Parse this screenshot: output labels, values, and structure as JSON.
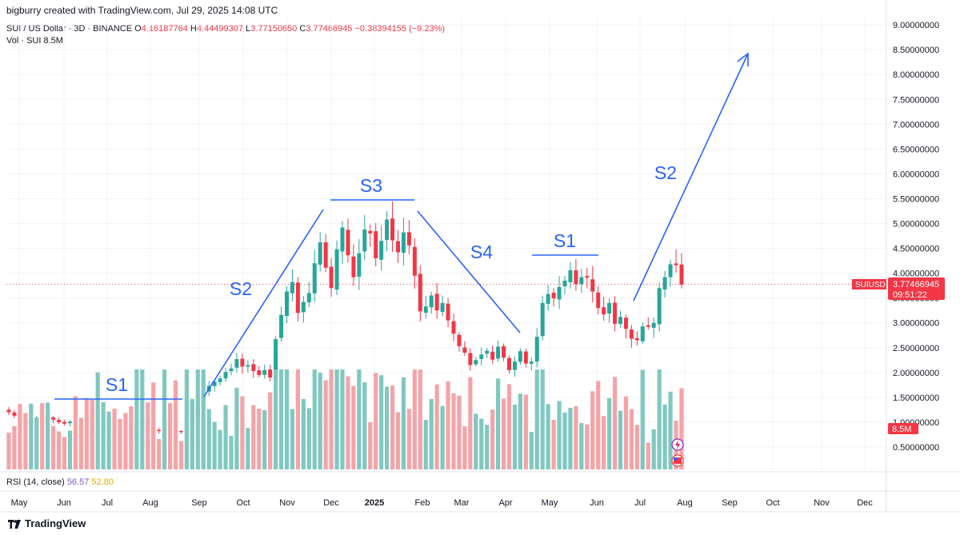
{
  "header": {
    "credit": "bigburry created with TradingView.com, Jul 29, 2025 14:08 UTC",
    "symbol_line": "SUI / US Dollar · 3D · BINANCE",
    "o_label": "O",
    "o_value": "4.16187764",
    "h_label": "H",
    "h_value": "4.44499307",
    "l_label": "L",
    "l_value": "3.77150650",
    "c_label": "C",
    "c_value": "3.77466945",
    "change": "−0.38394155 (−9.23%)",
    "vol_label": "Vol · SUI",
    "vol_value": "8.5M"
  },
  "rsi": {
    "label": "RSI (14, close)",
    "value1": "56.57",
    "value2": "52.80"
  },
  "footer": {
    "brand": "TradingView"
  },
  "colors": {
    "up": "#26a69a",
    "down": "#f23645",
    "drawing": "#2962ff",
    "vol_up": "#7fc8c0",
    "vol_down": "#f5a3a7"
  },
  "icons": [
    "tv-logo-icon",
    "lightning-icon",
    "us-flag-icon"
  ],
  "chart_data": {
    "type": "candlestick",
    "symbol": "SUIUSD",
    "interval": "3D",
    "y_ticks": [
      "9.00000000",
      "8.50000000",
      "8.00000000",
      "7.50000000",
      "7.00000000",
      "6.50000000",
      "6.00000000",
      "5.50000000",
      "5.00000000",
      "4.50000000",
      "4.00000000",
      "3.50000000",
      "3.00000000",
      "2.50000000",
      "2.00000000",
      "1.50000000",
      "1.00000000",
      "0.50000000"
    ],
    "x_ticks": [
      "May",
      "Jun",
      "Jul",
      "Aug",
      "Sep",
      "Oct",
      "Nov",
      "Dec",
      "2025",
      "Feb",
      "Mar",
      "Apr",
      "May",
      "Jun",
      "Jul",
      "Aug",
      "Sep",
      "Oct",
      "Nov",
      "Dec"
    ],
    "last_price": {
      "symbol": "SUIUSD",
      "price": "3.77466945",
      "countdown": "09:51:22",
      "volume": "8.5M"
    },
    "ylim": [
      0,
      9.2
    ],
    "annotations": [
      {
        "label": "S1",
        "from_date": "2024-06",
        "to_date": "2024-08",
        "price": 1.45
      },
      {
        "label": "S2",
        "from_date": "2024-09",
        "to_date": "2024-11",
        "price_range": [
          1.45,
          5.3
        ]
      },
      {
        "label": "S3",
        "from_date": "2024-12",
        "to_date": "2025-01",
        "price": 5.45
      },
      {
        "label": "S4",
        "from_date": "2025-01",
        "to_date": "2025-04",
        "price_range": [
          5.3,
          2.8
        ]
      },
      {
        "label": "S1",
        "from_date": "2025-04",
        "to_date": "2025-06",
        "price": 4.35
      },
      {
        "label": "S2",
        "from_date": "2025-07",
        "to_date": "2025-09",
        "price_range": [
          3.5,
          8.4
        ]
      }
    ],
    "approx_closes": [
      1.2,
      1.13,
      1.04,
      0.98,
      1.05,
      1.09,
      1.03,
      1.1,
      1.05,
      1.0,
      0.97,
      1.01,
      0.92,
      0.87,
      0.79,
      0.72,
      0.82,
      0.88,
      0.92,
      0.87,
      0.82,
      0.77,
      0.7,
      0.87,
      1.02,
      0.95,
      0.84,
      0.82,
      1.03,
      0.95,
      0.82,
      0.8,
      1.0,
      1.08,
      1.31,
      1.6,
      1.73,
      1.82,
      1.88,
      2.01,
      2.08,
      2.27,
      2.12,
      2.15,
      2.03,
      1.95,
      2.05,
      1.9,
      2.67,
      3.16,
      3.63,
      3.82,
      3.2,
      3.42,
      3.6,
      4.2,
      4.62,
      4.11,
      3.7,
      4.48,
      4.92,
      4.36,
      3.92,
      4.4,
      4.88,
      4.8,
      4.3,
      4.65,
      5.08,
      4.66,
      4.42,
      4.82,
      4.56,
      3.95,
      3.23,
      3.33,
      3.55,
      3.25,
      3.4,
      3.05,
      2.78,
      2.53,
      2.4,
      2.15,
      2.25,
      2.36,
      2.44,
      2.26,
      2.52,
      2.3,
      2.05,
      2.22,
      2.43,
      2.18,
      2.22,
      2.72,
      3.4,
      3.58,
      3.49,
      3.72,
      3.85,
      4.06,
      3.78,
      3.92,
      3.91,
      3.63,
      3.3,
      3.17,
      3.4,
      2.98,
      3.12,
      2.88,
      2.68,
      2.65,
      2.93,
      2.92,
      3.0,
      3.7,
      3.92,
      4.18,
      4.16,
      3.77
    ]
  }
}
